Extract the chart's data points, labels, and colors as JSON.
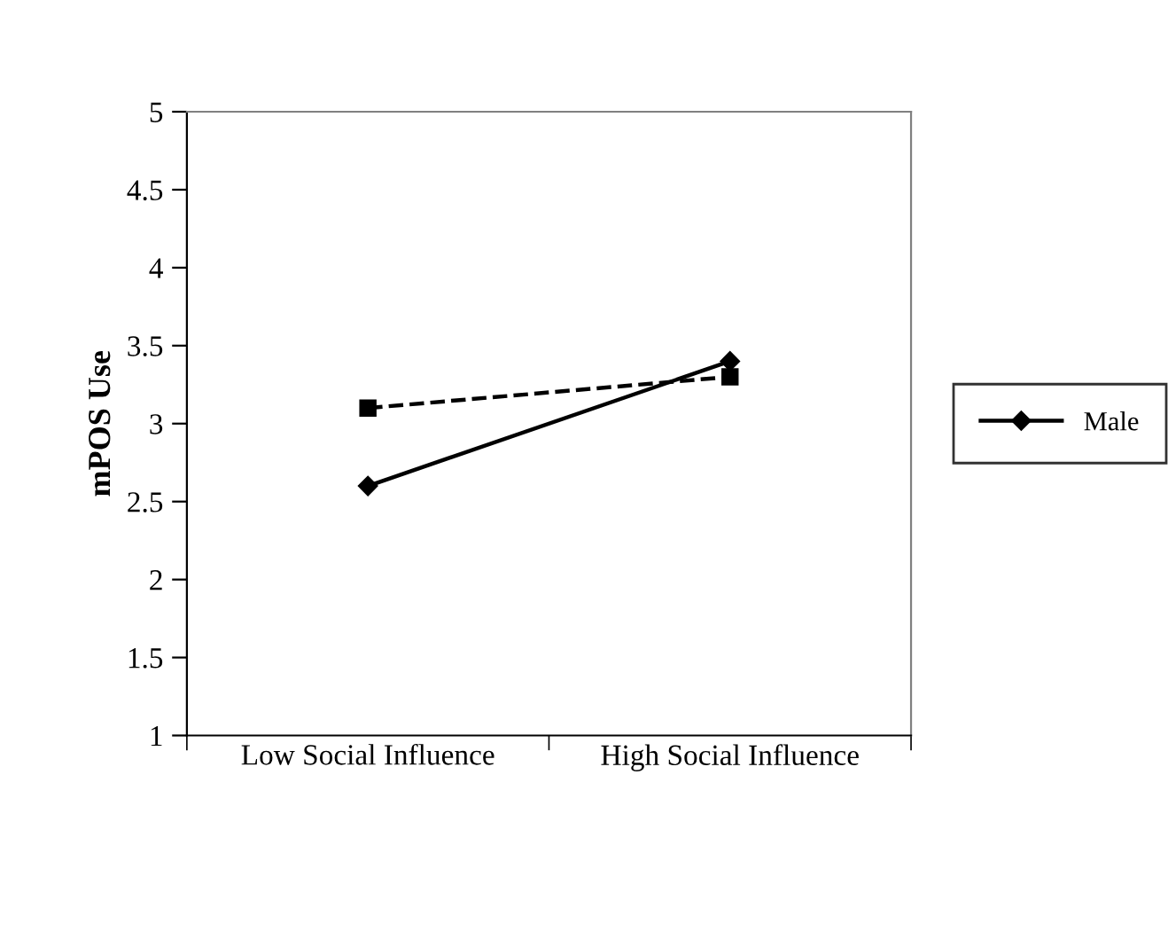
{
  "chart_data": {
    "type": "line",
    "ylabel": "mPOS Use",
    "categories": [
      "Low Social Influence",
      "High Social Influence"
    ],
    "series": [
      {
        "name": "Male",
        "color": "#000000",
        "values": [
          2.6,
          3.4
        ],
        "marker": "diamond",
        "line_style": "solid"
      },
      {
        "color": "#000000",
        "values": [
          3.1,
          3.3
        ],
        "marker": "square",
        "line_style": "dashed"
      }
    ],
    "ylim": [
      1,
      5
    ],
    "yticks": [
      1,
      1.5,
      2,
      2.5,
      3,
      3.5,
      4,
      4.5,
      5
    ],
    "grid": false,
    "legend": "right"
  }
}
